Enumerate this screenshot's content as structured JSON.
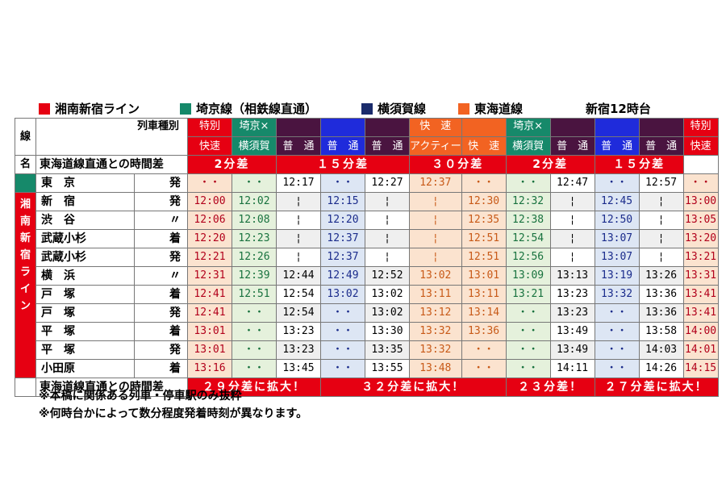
{
  "legend": [
    {
      "label": "湘南新宿ライン",
      "color": "#e60012"
    },
    {
      "label": "埼京線（相鉄線直通）",
      "color": "#16896a"
    },
    {
      "label": "横須賀線",
      "color": "#1a2b6b"
    },
    {
      "label": "東海道線",
      "color": "#f26322"
    }
  ],
  "page_title": "新宿12時台",
  "corner_top": "線",
  "corner_bottom": "名",
  "train_type_label": "列車種別",
  "diff_label": "東海道線直通との時間差",
  "line_name_vertical": [
    "湘",
    "南",
    "新",
    "宿",
    "ラ",
    "イ",
    "ン"
  ],
  "columns": [
    {
      "top": "特別",
      "bottom": "快速",
      "color": "red"
    },
    {
      "top": "埼京×",
      "bottom": "横須賀",
      "color": "teal"
    },
    {
      "top": "",
      "bottom": "普　通",
      "color": "purple"
    },
    {
      "top": "",
      "bottom": "普　通",
      "color": "blue"
    },
    {
      "top": "",
      "bottom": "普　通",
      "color": "purple"
    },
    {
      "top": "快　速",
      "bottom": "アクティー",
      "color": "orange"
    },
    {
      "top": "",
      "bottom": "快　速",
      "color": "orange"
    },
    {
      "top": "埼京×",
      "bottom": "横須賀",
      "color": "teal"
    },
    {
      "top": "",
      "bottom": "普　通",
      "color": "purple"
    },
    {
      "top": "",
      "bottom": "普　通",
      "color": "blue"
    },
    {
      "top": "",
      "bottom": "普　通",
      "color": "purple"
    },
    {
      "top": "特別",
      "bottom": "快速",
      "color": "red"
    }
  ],
  "diff_top": [
    "2分差",
    "１５分差",
    "３０分差",
    "2分差",
    "１５分差"
  ],
  "tokyo": {
    "name": "東　京",
    "kind": "発",
    "times": [
      "・・",
      "・・",
      "12:17",
      "・・",
      "12:27",
      "12:37",
      "・・",
      "・・",
      "12:47",
      "・・",
      "12:57",
      "・・"
    ]
  },
  "stations": [
    {
      "name": "新　宿",
      "kind": "発",
      "times": [
        "12:00",
        "12:02",
        "¦",
        "12:15",
        "¦",
        "¦",
        "12:30",
        "12:32",
        "¦",
        "12:45",
        "¦",
        "13:00"
      ]
    },
    {
      "name": "渋　谷",
      "kind": "〃",
      "times": [
        "12:06",
        "12:08",
        "¦",
        "12:20",
        "¦",
        "¦",
        "12:35",
        "12:38",
        "¦",
        "12:50",
        "¦",
        "13:05"
      ]
    },
    {
      "name": "武蔵小杉",
      "kind": "着",
      "times": [
        "12:20",
        "12:23",
        "¦",
        "12:37",
        "¦",
        "¦",
        "12:51",
        "12:54",
        "¦",
        "13:07",
        "¦",
        "13:20"
      ]
    },
    {
      "name": "武蔵小杉",
      "kind": "発",
      "times": [
        "12:21",
        "12:26",
        "¦",
        "12:37",
        "¦",
        "¦",
        "12:51",
        "12:56",
        "¦",
        "13:07",
        "¦",
        "13:21"
      ]
    },
    {
      "name": "横　浜",
      "kind": "〃",
      "times": [
        "12:31",
        "12:39",
        "12:44",
        "12:49",
        "12:52",
        "13:02",
        "13:01",
        "13:09",
        "13:13",
        "13:19",
        "13:26",
        "13:31"
      ]
    },
    {
      "name": "戸　塚",
      "kind": "着",
      "times": [
        "12:41",
        "12:51",
        "12:54",
        "13:02",
        "13:02",
        "13:11",
        "13:11",
        "13:21",
        "13:23",
        "13:32",
        "13:36",
        "13:41"
      ]
    },
    {
      "name": "戸　塚",
      "kind": "発",
      "times": [
        "12:41",
        "・・",
        "12:54",
        "・・",
        "13:02",
        "13:12",
        "13:14",
        "・・",
        "13:23",
        "・・",
        "13:36",
        "13:41"
      ]
    },
    {
      "name": "平　塚",
      "kind": "着",
      "times": [
        "13:01",
        "・・",
        "13:23",
        "・・",
        "13:30",
        "13:32",
        "13:36",
        "・・",
        "13:49",
        "・・",
        "13:58",
        "14:00"
      ]
    },
    {
      "name": "平　塚",
      "kind": "発",
      "times": [
        "13:01",
        "・・",
        "13:23",
        "・・",
        "13:35",
        "13:32",
        "・・",
        "・・",
        "13:49",
        "・・",
        "14:03",
        "14:01"
      ]
    },
    {
      "name": "小田原",
      "kind": "着",
      "times": [
        "13:16",
        "・・",
        "13:45",
        "・・",
        "13:55",
        "13:48",
        "・・",
        "・・",
        "14:11",
        "・・",
        "14:26",
        "14:15"
      ]
    }
  ],
  "diff_bottom": [
    "２９分差に拡大！",
    "３２分差に拡大！",
    "２３分差！",
    "２７分差に拡大！"
  ],
  "notes": [
    "※本稿に関係ある列車・停車駅のみ抜粋",
    "※何時台かによって数分程度発着時刻が異なります。"
  ]
}
